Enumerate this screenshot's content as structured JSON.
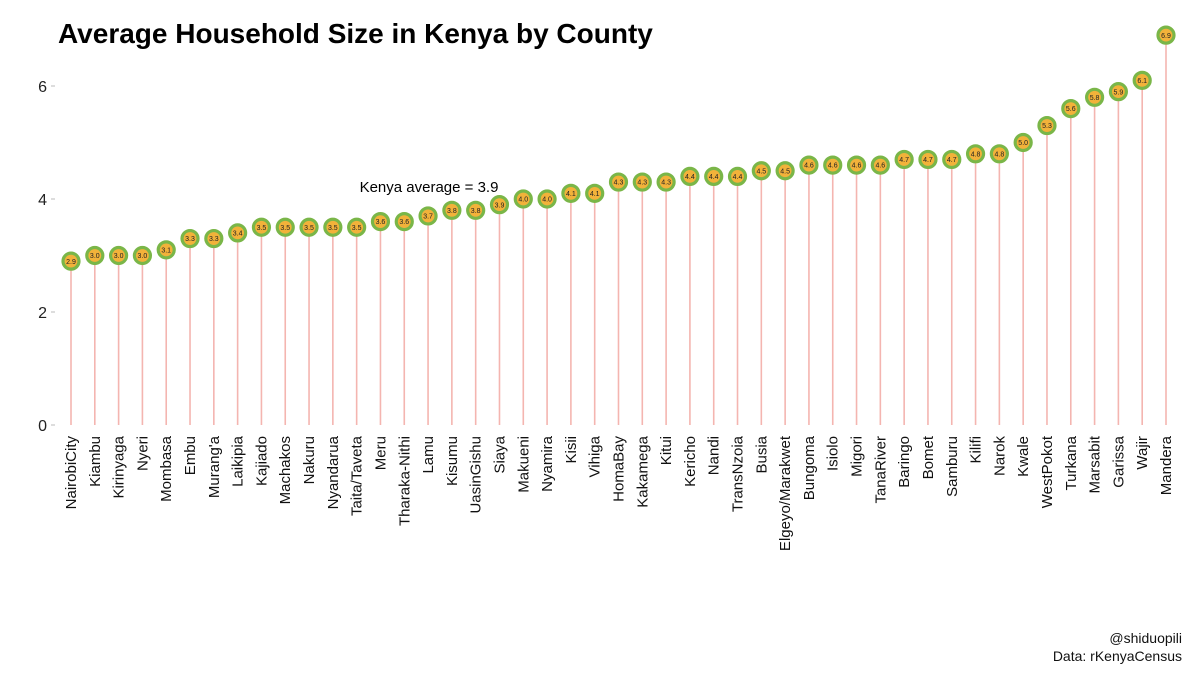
{
  "chart_data": {
    "type": "lollipop",
    "title": "Average Household Size in Kenya by County",
    "xlabel": "",
    "ylabel": "",
    "ylim": [
      0,
      6.9
    ],
    "yticks": [
      0,
      2,
      4,
      6
    ],
    "grid": false,
    "legend": "none",
    "categories": [
      "NairobiCity",
      "Kiambu",
      "Kirinyaga",
      "Nyeri",
      "Mombasa",
      "Embu",
      "Murang'a",
      "Laikipia",
      "Kajiado",
      "Machakos",
      "Nakuru",
      "Nyandarua",
      "Taita/Taveta",
      "Meru",
      "Tharaka-Nithi",
      "Lamu",
      "Kisumu",
      "UasinGishu",
      "Siaya",
      "Makueni",
      "Nyamira",
      "Kisii",
      "Vihiga",
      "HomaBay",
      "Kakamega",
      "Kitui",
      "Kericho",
      "Nandi",
      "TransNzoia",
      "Busia",
      "Elgeyo/Marakwet",
      "Bungoma",
      "Isiolo",
      "Migori",
      "TanaRiver",
      "Baringo",
      "Bomet",
      "Samburu",
      "Kilifi",
      "Narok",
      "Kwale",
      "WestPokot",
      "Turkana",
      "Marsabit",
      "Garissa",
      "Wajir",
      "Mandera"
    ],
    "values": [
      2.9,
      3.0,
      3.0,
      3.0,
      3.1,
      3.3,
      3.3,
      3.4,
      3.5,
      3.5,
      3.5,
      3.5,
      3.5,
      3.6,
      3.6,
      3.7,
      3.8,
      3.8,
      3.9,
      4.0,
      4.0,
      4.1,
      4.1,
      4.3,
      4.3,
      4.3,
      4.4,
      4.4,
      4.4,
      4.5,
      4.5,
      4.6,
      4.6,
      4.6,
      4.6,
      4.7,
      4.7,
      4.7,
      4.8,
      4.8,
      5.0,
      5.3,
      5.6,
      5.8,
      5.9,
      6.1,
      6.9
    ],
    "annotation": "Kenya average = 3.9",
    "colors": {
      "stem": "#f4b5b0",
      "marker_ring": "#7ab648",
      "marker_fill": "#f2b23a",
      "marker_text": "#222222"
    }
  },
  "credits": {
    "handle": "@shiduopili",
    "source": "Data: rKenyaCensus"
  }
}
